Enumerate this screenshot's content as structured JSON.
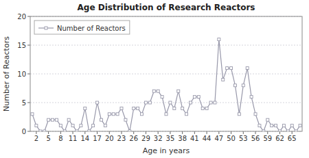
{
  "chart_data": {
    "type": "line",
    "title": "Age Distribution of Research Reactors",
    "xlabel": "Age in years",
    "ylabel": "Number of Reactors",
    "x": [
      1,
      2,
      3,
      4,
      5,
      6,
      7,
      8,
      9,
      10,
      11,
      12,
      13,
      14,
      15,
      16,
      17,
      18,
      19,
      20,
      21,
      22,
      23,
      24,
      25,
      26,
      27,
      28,
      29,
      30,
      31,
      32,
      33,
      34,
      35,
      36,
      37,
      38,
      39,
      40,
      41,
      42,
      43,
      44,
      45,
      46,
      47,
      48,
      49,
      50,
      51,
      52,
      53,
      54,
      55,
      56,
      57,
      58,
      59,
      60,
      61,
      62,
      63,
      64,
      65,
      66,
      67
    ],
    "series": [
      {
        "name": "Number of Reactors",
        "color": "#9898aa",
        "marker": "square",
        "values": [
          3,
          1,
          0,
          0,
          2,
          2,
          2,
          1,
          0,
          2,
          1,
          0,
          1,
          4,
          0,
          1,
          5,
          2,
          1,
          3,
          3,
          3,
          4,
          2,
          0,
          4,
          4,
          3,
          5,
          5,
          7,
          7,
          6,
          3,
          5,
          4,
          7,
          4,
          3,
          5,
          6,
          6,
          4,
          4,
          5,
          5,
          16,
          9,
          11,
          11,
          8,
          3,
          8,
          11,
          6,
          3,
          1,
          0,
          2,
          1,
          1,
          0,
          1,
          0,
          1,
          0,
          1
        ]
      }
    ],
    "xlim": [
      0.5,
      67.5
    ],
    "xticks": [
      2,
      5,
      8,
      11,
      14,
      17,
      20,
      23,
      26,
      29,
      32,
      35,
      38,
      41,
      44,
      47,
      50,
      53,
      56,
      59,
      62,
      65
    ],
    "ylim": [
      0,
      20
    ],
    "yticks": [
      0,
      5,
      10,
      15,
      20
    ],
    "grid": "y",
    "legend": "upper left"
  }
}
